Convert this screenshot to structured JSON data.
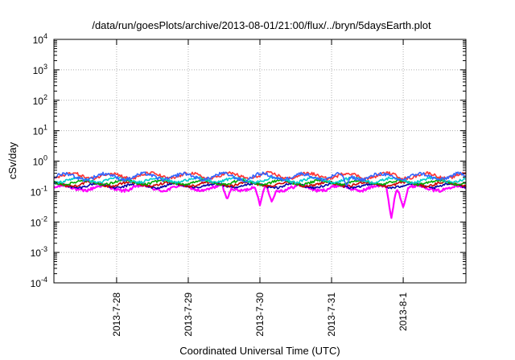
{
  "chart_data": {
    "type": "line",
    "title": "/data/run/goesPlots/archive/2013-08-01/21:00/flux/../bryn/5daysEarth.plot",
    "xlabel": "Coordinated Universal Time (UTC)",
    "ylabel": "cSv/day",
    "xlim": [
      "2013-07-27T03:00",
      "2013-08-01T21:00"
    ],
    "x_ticks": [
      "2013-7-28",
      "2013-7-29",
      "2013-7-30",
      "2013-7-31",
      "2013-8-1"
    ],
    "y_scale": "log",
    "ylim": [
      0.0001,
      10000
    ],
    "y_ticks": [
      {
        "base": "10",
        "exp": "-4"
      },
      {
        "base": "10",
        "exp": "-3"
      },
      {
        "base": "10",
        "exp": "-2"
      },
      {
        "base": "10",
        "exp": "-1"
      },
      {
        "base": "10",
        "exp": "0"
      },
      {
        "base": "10",
        "exp": "1"
      },
      {
        "base": "10",
        "exp": "2"
      },
      {
        "base": "10",
        "exp": "3"
      },
      {
        "base": "10",
        "exp": "4"
      }
    ],
    "grid": true,
    "legend": "none",
    "series": [
      {
        "color": "#ff00ff",
        "level": 0.13,
        "amp": 0.25,
        "dips": [
          {
            "x": "2013-07-29T13:00",
            "y": 0.055
          },
          {
            "x": "2013-07-30T00:00",
            "y": 0.035
          },
          {
            "x": "2013-07-30T04:00",
            "y": 0.045
          },
          {
            "x": "2013-07-31T20:00",
            "y": 0.013
          },
          {
            "x": "2013-08-01T00:00",
            "y": 0.03
          }
        ]
      },
      {
        "color": "#0000aa",
        "level": 0.155,
        "amp": 0.2,
        "dips": []
      },
      {
        "color": "#cc0000",
        "level": 0.175,
        "amp": 0.2,
        "dips": []
      },
      {
        "color": "#00aa00",
        "level": 0.2,
        "amp": 0.2,
        "dips": []
      },
      {
        "color": "#00cccc",
        "level": 0.24,
        "amp": 0.22,
        "dips": []
      },
      {
        "color": "#ff3333",
        "level": 0.33,
        "amp": 0.25,
        "dips": []
      },
      {
        "color": "#3366ff",
        "level": 0.31,
        "amp": 0.28,
        "dips": [
          {
            "x": "2013-07-29T19:00",
            "y": 0.2
          },
          {
            "x": "2013-07-31T05:00",
            "y": 0.15
          }
        ]
      }
    ]
  }
}
